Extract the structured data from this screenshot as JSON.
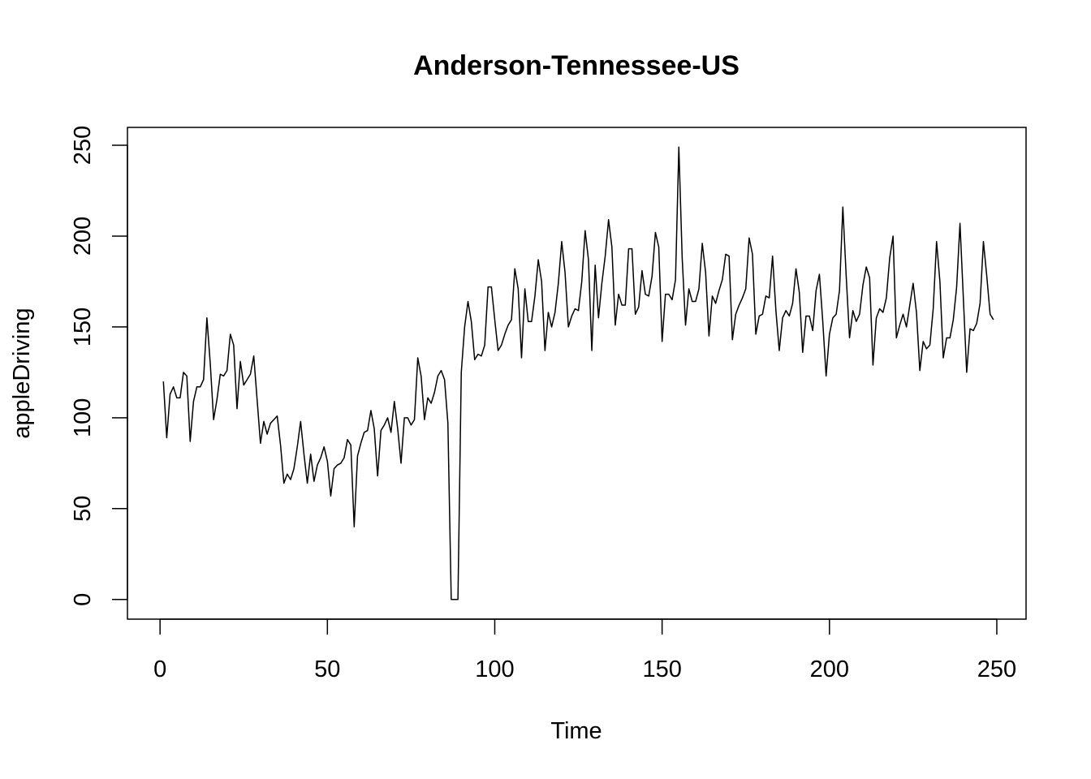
{
  "chart_data": {
    "type": "line",
    "title": "Anderson-Tennessee-US",
    "xlabel": "Time",
    "ylabel": "appleDriving",
    "xlim": [
      1,
      248
    ],
    "ylim": [
      0,
      249
    ],
    "x_ticks": [
      0,
      50,
      100,
      150,
      200,
      250
    ],
    "y_ticks": [
      0,
      50,
      100,
      150,
      200,
      250
    ],
    "x_tick_labels": [
      "0",
      "50",
      "100",
      "150",
      "200",
      "250"
    ],
    "y_tick_labels": [
      "0",
      "50",
      "100",
      "150",
      "200",
      "250"
    ],
    "grid": false,
    "line_color": "#000000",
    "series": [
      {
        "x_start": 1,
        "x_step": 1,
        "values": [
          120,
          89,
          113,
          117,
          111,
          111,
          125,
          123,
          87,
          109,
          117,
          117,
          121,
          155,
          130,
          99,
          110,
          124,
          123,
          126,
          146,
          140,
          105,
          131,
          118,
          121,
          124,
          134,
          110,
          86,
          98,
          91,
          97,
          99,
          101,
          85,
          64,
          69,
          66,
          72,
          84,
          98,
          80,
          64,
          80,
          65,
          74,
          78,
          84,
          76,
          57,
          72,
          74,
          75,
          78,
          88,
          85,
          40,
          79,
          86,
          92,
          93,
          104,
          94,
          68,
          93,
          96,
          100,
          92,
          109,
          94,
          75,
          100,
          100,
          96,
          99,
          133,
          123,
          99,
          111,
          108,
          114,
          123,
          126,
          121,
          97,
          0,
          0,
          0,
          125,
          150,
          164,
          153,
          132,
          135,
          134,
          140,
          172,
          172,
          154,
          137,
          140,
          146,
          151,
          154,
          182,
          171,
          133,
          171,
          153,
          153,
          167,
          187,
          175,
          137,
          158,
          150,
          158,
          174,
          197,
          180,
          150,
          156,
          160,
          159,
          175,
          203,
          187,
          137,
          184,
          155,
          174,
          189,
          209,
          194,
          151,
          168,
          162,
          162,
          193,
          193,
          157,
          161,
          181,
          168,
          167,
          178,
          202,
          194,
          142,
          168,
          168,
          165,
          176,
          249,
          188,
          151,
          171,
          164,
          164,
          171,
          196,
          180,
          145,
          167,
          163,
          170,
          176,
          190,
          189,
          143,
          157,
          162,
          166,
          171,
          199,
          190,
          146,
          156,
          157,
          167,
          166,
          189,
          159,
          137,
          155,
          159,
          156,
          163,
          182,
          169,
          136,
          156,
          156,
          148,
          170,
          179,
          153,
          123,
          146,
          155,
          157,
          170,
          216,
          178,
          144,
          159,
          153,
          157,
          173,
          183,
          177,
          129,
          155,
          160,
          158,
          166,
          188,
          200,
          144,
          151,
          157,
          150,
          162,
          174,
          158,
          126,
          142,
          138,
          140,
          160,
          197,
          175,
          133,
          144,
          144,
          154,
          172,
          207,
          166,
          125,
          149,
          148,
          152,
          163,
          197,
          178,
          157,
          154
        ]
      }
    ]
  }
}
